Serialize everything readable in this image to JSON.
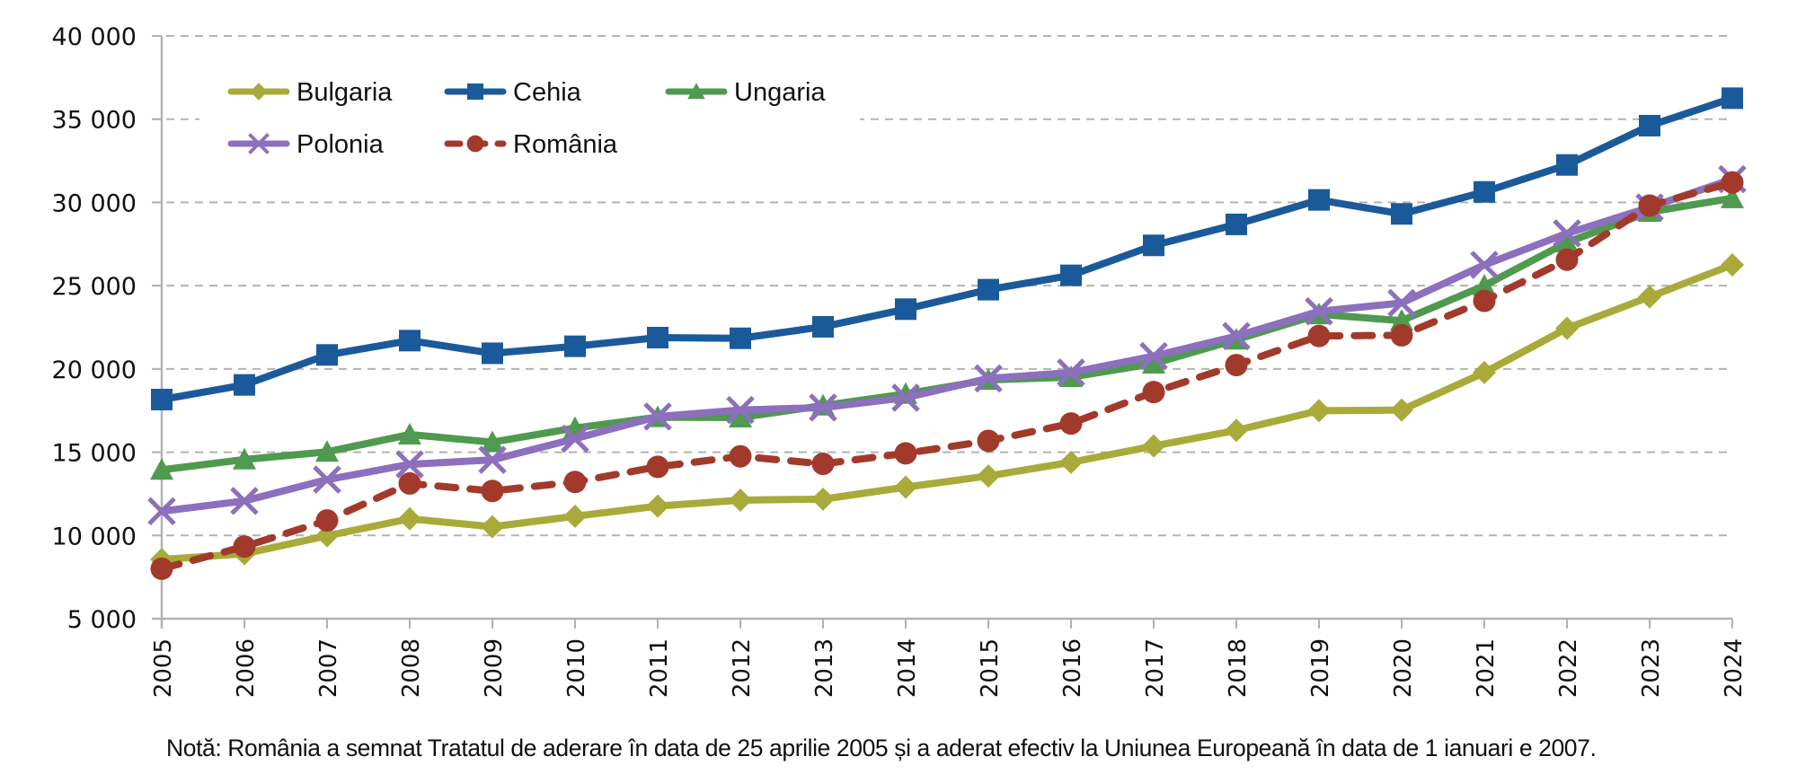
{
  "chart_data": {
    "type": "line",
    "title": "",
    "xlabel": "",
    "ylabel": "",
    "ylim": [
      5000,
      40000
    ],
    "yticks": [
      5000,
      10000,
      15000,
      20000,
      25000,
      30000,
      35000,
      40000
    ],
    "ytick_labels": [
      "5 000",
      "10 000",
      "15 000",
      "20 000",
      "25 000",
      "30 000",
      "35 000",
      "40 000"
    ],
    "grid": "horizontal dashed",
    "legend_position": "top-left",
    "x": [
      "2005",
      "2006",
      "2007",
      "2008",
      "2009",
      "2010",
      "2011",
      "2012",
      "2013",
      "2014",
      "2015",
      "2016",
      "2017",
      "2018",
      "2019",
      "2020",
      "2021",
      "2022",
      "2023",
      "2024"
    ],
    "series": [
      {
        "name": "Bulgaria",
        "color": "#a8ab3a",
        "marker": "diamond",
        "dashed": false,
        "values": [
          8550,
          8900,
          9980,
          11000,
          10520,
          11150,
          11760,
          12120,
          12180,
          12900,
          13570,
          14390,
          15370,
          16310,
          17490,
          17530,
          19780,
          22440,
          24330,
          26250
        ]
      },
      {
        "name": "Cehia",
        "color": "#1b5a9a",
        "marker": "square",
        "dashed": false,
        "values": [
          18160,
          19040,
          20840,
          21700,
          20940,
          21360,
          21880,
          21840,
          22530,
          23590,
          24760,
          25620,
          27420,
          28680,
          30150,
          29310,
          30630,
          32250,
          34610,
          36260
        ]
      },
      {
        "name": "Ungaria",
        "color": "#4f9a4e",
        "marker": "triangle",
        "dashed": false,
        "values": [
          13940,
          14560,
          15020,
          16060,
          15600,
          16450,
          17100,
          17080,
          17800,
          18500,
          19340,
          19510,
          20320,
          21760,
          23280,
          22900,
          25000,
          27600,
          29430,
          30250
        ]
      },
      {
        "name": "Polonia",
        "color": "#8c6fbd",
        "marker": "x",
        "dashed": false,
        "values": [
          11450,
          12070,
          13350,
          14270,
          14540,
          15810,
          17140,
          17530,
          17680,
          18270,
          19430,
          19780,
          20770,
          21970,
          23460,
          23960,
          26250,
          28140,
          29700,
          31400
        ]
      },
      {
        "name": "România",
        "color": "#a23a2c",
        "marker": "circle",
        "dashed": true,
        "values": [
          8000,
          9330,
          10900,
          13120,
          12670,
          13210,
          14120,
          14750,
          14300,
          14930,
          15680,
          16720,
          18610,
          20230,
          21980,
          22020,
          24090,
          26560,
          29810,
          31200
        ]
      }
    ]
  },
  "note": "Notă: România a semnat Tratatul de aderare în data de 25 aprilie 2005 și a aderat efectiv la Uniunea Europeană în data de 1 ianuari e 2007."
}
